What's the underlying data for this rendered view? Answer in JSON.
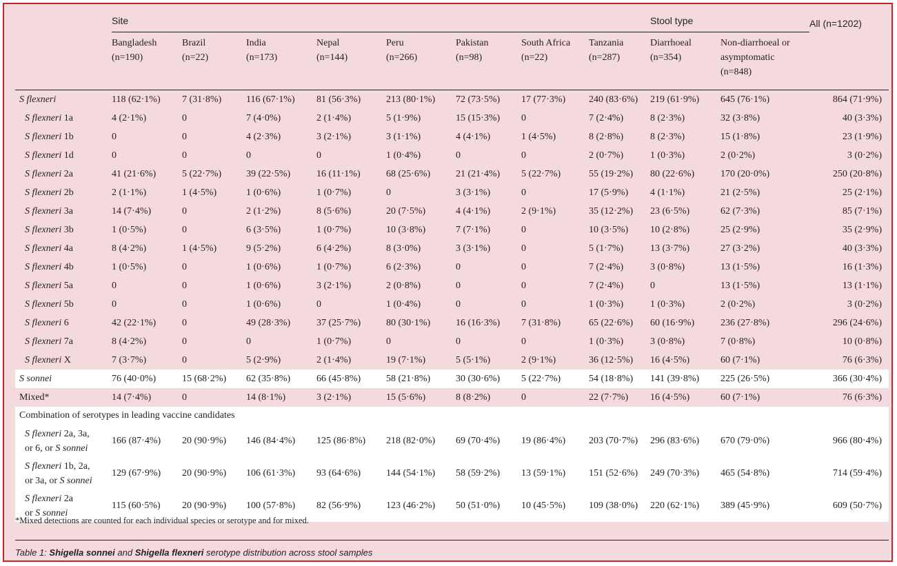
{
  "header": {
    "site_label": "Site",
    "stool_type_label": "Stool type",
    "all_label": "All (n=1202)",
    "columns": [
      {
        "name": "Bangladesh",
        "n": "(n=190)"
      },
      {
        "name": "Brazil",
        "n": "(n=22)"
      },
      {
        "name": "India",
        "n": "(n=173)"
      },
      {
        "name": "Nepal",
        "n": "(n=144)"
      },
      {
        "name": "Peru",
        "n": "(n=266)"
      },
      {
        "name": "Pakistan",
        "n": "(n=98)"
      },
      {
        "name": "South Africa",
        "n": "(n=22)"
      },
      {
        "name": "Tanzania",
        "n": "(n=287)"
      },
      {
        "name": "Diarrhoeal",
        "n": "(n=354)"
      },
      {
        "name": "Non-diarrhoeal or asymptomatic",
        "n": "(n=848)"
      }
    ]
  },
  "rows": [
    {
      "label": "S flexneri",
      "sub": "",
      "values": [
        "118 (62·1%)",
        "7 (31·8%)",
        "116 (67·1%)",
        "81 (56·3%)",
        "213 (80·1%)",
        "72 (73·5%)",
        "17 (77·3%)",
        "240 (83·6%)",
        "219 (61·9%)",
        "645 (76·1%)"
      ],
      "all": "864 (71·9%)"
    },
    {
      "label": "S flexneri",
      "sub": " 1a",
      "values": [
        "4 (2·1%)",
        "0",
        "7 (4·0%)",
        "2 (1·4%)",
        "5 (1·9%)",
        "15 (15·3%)",
        "0",
        "7 (2·4%)",
        "8 (2·3%)",
        "32 (3·8%)"
      ],
      "all": "40 (3·3%)"
    },
    {
      "label": "S flexneri",
      "sub": " 1b",
      "values": [
        "0",
        "0",
        "4 (2·3%)",
        "3 (2·1%)",
        "3 (1·1%)",
        "4 (4·1%)",
        "1 (4·5%)",
        "8 (2·8%)",
        "8 (2·3%)",
        "15 (1·8%)"
      ],
      "all": "23 (1·9%)"
    },
    {
      "label": "S flexneri",
      "sub": " 1d",
      "values": [
        "0",
        "0",
        "0",
        "0",
        "1 (0·4%)",
        "0",
        "0",
        "2 (0·7%)",
        "1 (0·3%)",
        "2 (0·2%)"
      ],
      "all": "3 (0·2%)"
    },
    {
      "label": "S flexneri",
      "sub": " 2a",
      "values": [
        "41 (21·6%)",
        "5 (22·7%)",
        "39 (22·5%)",
        "16 (11·1%)",
        "68 (25·6%)",
        "21 (21·4%)",
        "5 (22·7%)",
        "55 (19·2%)",
        "80 (22·6%)",
        "170 (20·0%)"
      ],
      "all": "250 (20·8%)"
    },
    {
      "label": "S flexneri",
      "sub": " 2b",
      "values": [
        "2 (1·1%)",
        "1 (4·5%)",
        "1 (0·6%)",
        "1 (0·7%)",
        "0",
        "3 (3·1%)",
        "0",
        "17 (5·9%)",
        "4 (1·1%)",
        "21 (2·5%)"
      ],
      "all": "25 (2·1%)"
    },
    {
      "label": "S flexneri",
      "sub": " 3a",
      "values": [
        "14 (7·4%)",
        "0",
        "2 (1·2%)",
        "8 (5·6%)",
        "20 (7·5%)",
        "4 (4·1%)",
        "2 (9·1%)",
        "35 (12·2%)",
        "23 (6·5%)",
        "62 (7·3%)"
      ],
      "all": "85 (7·1%)"
    },
    {
      "label": "S flexneri",
      "sub": " 3b",
      "values": [
        "1 (0·5%)",
        "0",
        "6 (3·5%)",
        "1 (0·7%)",
        "10 (3·8%)",
        "7 (7·1%)",
        "0",
        "10 (3·5%)",
        "10 (2·8%)",
        "25 (2·9%)"
      ],
      "all": "35 (2·9%)"
    },
    {
      "label": "S flexneri",
      "sub": " 4a",
      "values": [
        "8 (4·2%)",
        "1 (4·5%)",
        "9 (5·2%)",
        "6 (4·2%)",
        "8 (3·0%)",
        "3 (3·1%)",
        "0",
        "5 (1·7%)",
        "13 (3·7%)",
        "27 (3·2%)"
      ],
      "all": "40 (3·3%)"
    },
    {
      "label": "S flexneri",
      "sub": " 4b",
      "values": [
        "1 (0·5%)",
        "0",
        "1 (0·6%)",
        "1 (0·7%)",
        "6 (2·3%)",
        "0",
        "0",
        "7 (2·4%)",
        "3 (0·8%)",
        "13 (1·5%)"
      ],
      "all": "16 (1·3%)"
    },
    {
      "label": "S flexneri",
      "sub": " 5a",
      "values": [
        "0",
        "0",
        "1 (0·6%)",
        "3 (2·1%)",
        "2 (0·8%)",
        "0",
        "0",
        "7 (2·4%)",
        "0",
        "13 (1·5%)"
      ],
      "all": "13 (1·1%)"
    },
    {
      "label": "S flexneri",
      "sub": " 5b",
      "values": [
        "0",
        "0",
        "1 (0·6%)",
        "0",
        "1 (0·4%)",
        "0",
        "0",
        "1 (0·3%)",
        "1 (0·3%)",
        "2 (0·2%)"
      ],
      "all": "3 (0·2%)"
    },
    {
      "label": "S flexneri",
      "sub": " 6",
      "values": [
        "42 (22·1%)",
        "0",
        "49 (28·3%)",
        "37 (25·7%)",
        "80 (30·1%)",
        "16 (16·3%)",
        "7 (31·8%)",
        "65 (22·6%)",
        "60 (16·9%)",
        "236 (27·8%)"
      ],
      "all": "296 (24·6%)"
    },
    {
      "label": "S flexneri",
      "sub": " 7a",
      "values": [
        "8 (4·2%)",
        "0",
        "0",
        "1 (0·7%)",
        "0",
        "0",
        "0",
        "1 (0·3%)",
        "3 (0·8%)",
        "7 (0·8%)"
      ],
      "all": "10 (0·8%)"
    },
    {
      "label": "S flexneri",
      "sub": " X",
      "values": [
        "7 (3·7%)",
        "0",
        "5 (2·9%)",
        "2 (1·4%)",
        "19 (7·1%)",
        "5 (5·1%)",
        "2 (9·1%)",
        "36 (12·5%)",
        "16 (4·5%)",
        "60 (7·1%)"
      ],
      "all": "76 (6·3%)"
    },
    {
      "label": "S sonnei",
      "sub": "",
      "values": [
        "76 (40·0%)",
        "15 (68·2%)",
        "62 (35·8%)",
        "66 (45·8%)",
        "58 (21·8%)",
        "30 (30·6%)",
        "5 (22·7%)",
        "54 (18·8%)",
        "141 (39·8%)",
        "225 (26·5%)"
      ],
      "all": "366 (30·4%)"
    },
    {
      "label": "Mixed*",
      "sub": "",
      "values": [
        "14 (7·4%)",
        "0",
        "14 (8·1%)",
        "3 (2·1%)",
        "15 (5·6%)",
        "8 (8·2%)",
        "0",
        "22 (7·7%)",
        "16 (4·5%)",
        "60 (7·1%)"
      ],
      "all": "76 (6·3%)"
    }
  ],
  "combo_heading": "Combination of serotypes in leading vaccine candidates",
  "combos": [
    {
      "line1_it": "S flexneri",
      "line1_rest": " 2a, 3a,",
      "line2_pre": "or 6, or ",
      "line2_it": "S sonnei",
      "values": [
        "166 (87·4%)",
        "20 (90·9%)",
        "146 (84·4%)",
        "125 (86·8%)",
        "218 (82·0%)",
        "69 (70·4%)",
        "19 (86·4%)",
        "203 (70·7%)",
        "296 (83·6%)",
        "670 (79·0%)"
      ],
      "all": "966 (80·4%)"
    },
    {
      "line1_it": "S flexneri",
      "line1_rest": " 1b, 2a,",
      "line2_pre": "or 3a, or ",
      "line2_it": "S sonnei",
      "values": [
        "129 (67·9%)",
        "20 (90·9%)",
        "106 (61·3%)",
        "93 (64·6%)",
        "144 (54·1%)",
        "58 (59·2%)",
        "13 (59·1%)",
        "151 (52·6%)",
        "249 (70·3%)",
        "465 (54·8%)"
      ],
      "all": "714 (59·4%)"
    },
    {
      "line1_it": "S flexneri",
      "line1_rest": " 2a",
      "line2_pre": "or ",
      "line2_it": "S sonnei",
      "values": [
        "115 (60·5%)",
        "20 (90·9%)",
        "100 (57·8%)",
        "82 (56·9%)",
        "123 (46·2%)",
        "50 (51·0%)",
        "10 (45·5%)",
        "109 (38·0%)",
        "220 (62·1%)",
        "389 (45·9%)"
      ],
      "all": "609 (50·7%)"
    }
  ],
  "footnote": "*Mixed detections are counted for each individual species or serotype and for mixed.",
  "caption": {
    "prefix": "Table 1: ",
    "b1": "Shigella sonnei",
    "mid1": " and ",
    "b2": "Shigella flexneri",
    "suffix": " serotype distribution across stool samples"
  }
}
